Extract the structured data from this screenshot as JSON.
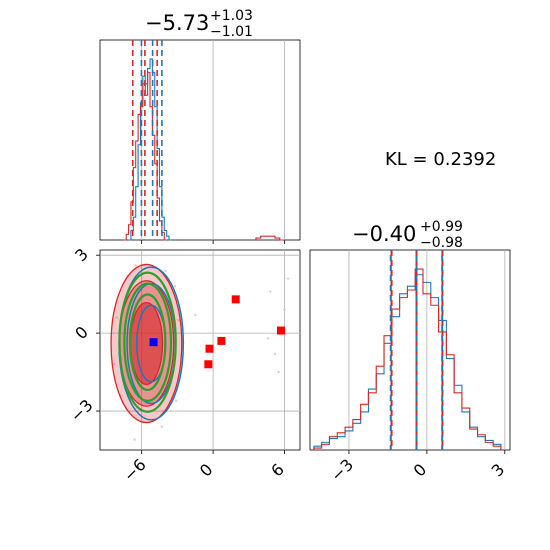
{
  "chart_data": {
    "type": "corner",
    "colors": {
      "blue": "#1f77b4",
      "red": "#d62728",
      "green": "#2ca02c",
      "grid": "#b0b0b0",
      "marker_red": "#ff0000",
      "marker_blue": "#0000ff"
    },
    "kl_text": "KL = 0.2392",
    "panels": [
      {
        "id": "hist_x",
        "type": "histogram",
        "title_main": "−5.73",
        "title_sup": "+1.03",
        "title_sub": "−1.01",
        "xlim": [
          -9.5,
          7.3
        ],
        "ylim": [
          0,
          1.05
        ],
        "quantile_lines_blue": [
          -6.02,
          -5.08,
          -4.3
        ],
        "quantile_lines_red": [
          -6.75,
          -5.73,
          -4.7
        ],
        "blue_hist": [
          {
            "x": -7.0,
            "h": 0.0
          },
          {
            "x": -6.8,
            "h": 0.05
          },
          {
            "x": -6.6,
            "h": 0.12
          },
          {
            "x": -6.4,
            "h": 0.28
          },
          {
            "x": -6.2,
            "h": 0.5
          },
          {
            "x": -6.0,
            "h": 0.72
          },
          {
            "x": -5.8,
            "h": 0.86
          },
          {
            "x": -5.6,
            "h": 0.82
          },
          {
            "x": -5.4,
            "h": 0.9
          },
          {
            "x": -5.2,
            "h": 0.95
          },
          {
            "x": -5.0,
            "h": 0.88
          },
          {
            "x": -4.8,
            "h": 0.7
          },
          {
            "x": -4.6,
            "h": 0.48
          },
          {
            "x": -4.4,
            "h": 0.28
          },
          {
            "x": -4.2,
            "h": 0.12
          },
          {
            "x": -4.0,
            "h": 0.05
          },
          {
            "x": -3.8,
            "h": 0.02
          },
          {
            "x": -3.6,
            "h": 0.0
          }
        ],
        "red_hist": [
          {
            "x": -7.4,
            "h": 0.0
          },
          {
            "x": -7.2,
            "h": 0.03
          },
          {
            "x": -7.0,
            "h": 0.08
          },
          {
            "x": -6.8,
            "h": 0.2
          },
          {
            "x": -6.6,
            "h": 0.38
          },
          {
            "x": -6.4,
            "h": 0.52
          },
          {
            "x": -6.2,
            "h": 0.66
          },
          {
            "x": -6.0,
            "h": 0.7
          },
          {
            "x": -5.8,
            "h": 0.82
          },
          {
            "x": -5.6,
            "h": 0.76
          },
          {
            "x": -5.4,
            "h": 0.88
          },
          {
            "x": -5.2,
            "h": 0.7
          },
          {
            "x": -5.0,
            "h": 0.55
          },
          {
            "x": -4.8,
            "h": 0.4
          },
          {
            "x": -4.6,
            "h": 0.22
          },
          {
            "x": -4.4,
            "h": 0.1
          },
          {
            "x": -4.2,
            "h": 0.04
          },
          {
            "x": -4.0,
            "h": 0.0
          },
          {
            "x": 3.8,
            "h": 0.01
          },
          {
            "x": 4.2,
            "h": 0.02
          },
          {
            "x": 4.6,
            "h": 0.02
          },
          {
            "x": 5.0,
            "h": 0.02
          },
          {
            "x": 5.4,
            "h": 0.01
          },
          {
            "x": 5.8,
            "h": 0.0
          }
        ],
        "xgrid": [
          -6,
          0,
          6
        ]
      },
      {
        "id": "scatter_xy",
        "type": "2d",
        "xlim": [
          -9.5,
          7.3
        ],
        "ylim": [
          -4.5,
          3.2
        ],
        "xticks": [
          -6,
          0,
          6
        ],
        "yticks": [
          -3,
          0,
          3
        ],
        "xtick_labels": [
          "−6",
          "0",
          "6"
        ],
        "ytick_labels": [
          "−3",
          "0",
          "3"
        ],
        "center": [
          -5.6,
          -0.4
        ],
        "ellipse_scale": {
          "sx": 1.35,
          "sy": 1.05
        },
        "red_squares": [
          [
            1.9,
            1.3
          ],
          [
            5.7,
            0.1
          ],
          [
            0.7,
            -0.3
          ],
          [
            -0.3,
            -0.6
          ],
          [
            -0.4,
            -1.2
          ]
        ],
        "blue_square": [
          -5.0,
          -0.35
        ],
        "faint_points": [
          [
            -7.2,
            2.2
          ],
          [
            -6.5,
            2.6
          ],
          [
            -4.0,
            2.4
          ],
          [
            -3.2,
            1.8
          ],
          [
            -7.8,
            -2.4
          ],
          [
            -3.1,
            -2.6
          ],
          [
            -6.6,
            -4.1
          ],
          [
            -4.3,
            -3.6
          ],
          [
            -2.9,
            0.5
          ],
          [
            -8.1,
            0.6
          ],
          [
            4.8,
            1.6
          ],
          [
            5.2,
            -0.8
          ],
          [
            6.0,
            0.9
          ],
          [
            4.6,
            -0.2
          ],
          [
            5.5,
            -1.5
          ],
          [
            6.3,
            2.1
          ],
          [
            -1.5,
            0.7
          ],
          [
            -8.3,
            -1.2
          ]
        ]
      },
      {
        "id": "hist_y",
        "type": "histogram",
        "title_main": "−0.40",
        "title_sup": "+0.99",
        "title_sub": "−0.98",
        "xlim": [
          -4.5,
          3.2
        ],
        "ylim": [
          0,
          1.05
        ],
        "xticks": [
          -3,
          0,
          3
        ],
        "xtick_labels": [
          "−3",
          "0",
          "3"
        ],
        "quantile_lines_blue": [
          -1.39,
          -0.4,
          0.59
        ],
        "quantile_lines_red": [
          -1.36,
          -0.4,
          0.6
        ],
        "blue_hist": [
          {
            "x": -4.2,
            "h": 0.02
          },
          {
            "x": -3.9,
            "h": 0.04
          },
          {
            "x": -3.6,
            "h": 0.06
          },
          {
            "x": -3.3,
            "h": 0.07
          },
          {
            "x": -3.0,
            "h": 0.1
          },
          {
            "x": -2.7,
            "h": 0.14
          },
          {
            "x": -2.4,
            "h": 0.2
          },
          {
            "x": -2.1,
            "h": 0.32
          },
          {
            "x": -1.8,
            "h": 0.4
          },
          {
            "x": -1.5,
            "h": 0.56
          },
          {
            "x": -1.2,
            "h": 0.7
          },
          {
            "x": -0.9,
            "h": 0.82
          },
          {
            "x": -0.6,
            "h": 0.86
          },
          {
            "x": -0.3,
            "h": 0.92
          },
          {
            "x": 0.0,
            "h": 0.88
          },
          {
            "x": 0.3,
            "h": 0.8
          },
          {
            "x": 0.6,
            "h": 0.68
          },
          {
            "x": 0.9,
            "h": 0.48
          },
          {
            "x": 1.2,
            "h": 0.34
          },
          {
            "x": 1.5,
            "h": 0.2
          },
          {
            "x": 1.8,
            "h": 0.12
          },
          {
            "x": 2.1,
            "h": 0.07
          },
          {
            "x": 2.4,
            "h": 0.05
          },
          {
            "x": 2.7,
            "h": 0.03
          }
        ],
        "red_hist": [
          {
            "x": -4.2,
            "h": 0.01
          },
          {
            "x": -3.9,
            "h": 0.03
          },
          {
            "x": -3.6,
            "h": 0.07
          },
          {
            "x": -3.3,
            "h": 0.09
          },
          {
            "x": -3.0,
            "h": 0.12
          },
          {
            "x": -2.7,
            "h": 0.16
          },
          {
            "x": -2.4,
            "h": 0.24
          },
          {
            "x": -2.1,
            "h": 0.3
          },
          {
            "x": -1.8,
            "h": 0.44
          },
          {
            "x": -1.5,
            "h": 0.6
          },
          {
            "x": -1.2,
            "h": 0.74
          },
          {
            "x": -0.9,
            "h": 0.8
          },
          {
            "x": -0.6,
            "h": 0.84
          },
          {
            "x": -0.3,
            "h": 0.95
          },
          {
            "x": 0.0,
            "h": 0.82
          },
          {
            "x": 0.3,
            "h": 0.76
          },
          {
            "x": 0.6,
            "h": 0.62
          },
          {
            "x": 0.9,
            "h": 0.5
          },
          {
            "x": 1.2,
            "h": 0.3
          },
          {
            "x": 1.5,
            "h": 0.22
          },
          {
            "x": 1.8,
            "h": 0.11
          },
          {
            "x": 2.1,
            "h": 0.08
          },
          {
            "x": 2.4,
            "h": 0.04
          },
          {
            "x": 2.7,
            "h": 0.02
          }
        ],
        "xgrid": [
          -3,
          0,
          3
        ]
      }
    ]
  }
}
